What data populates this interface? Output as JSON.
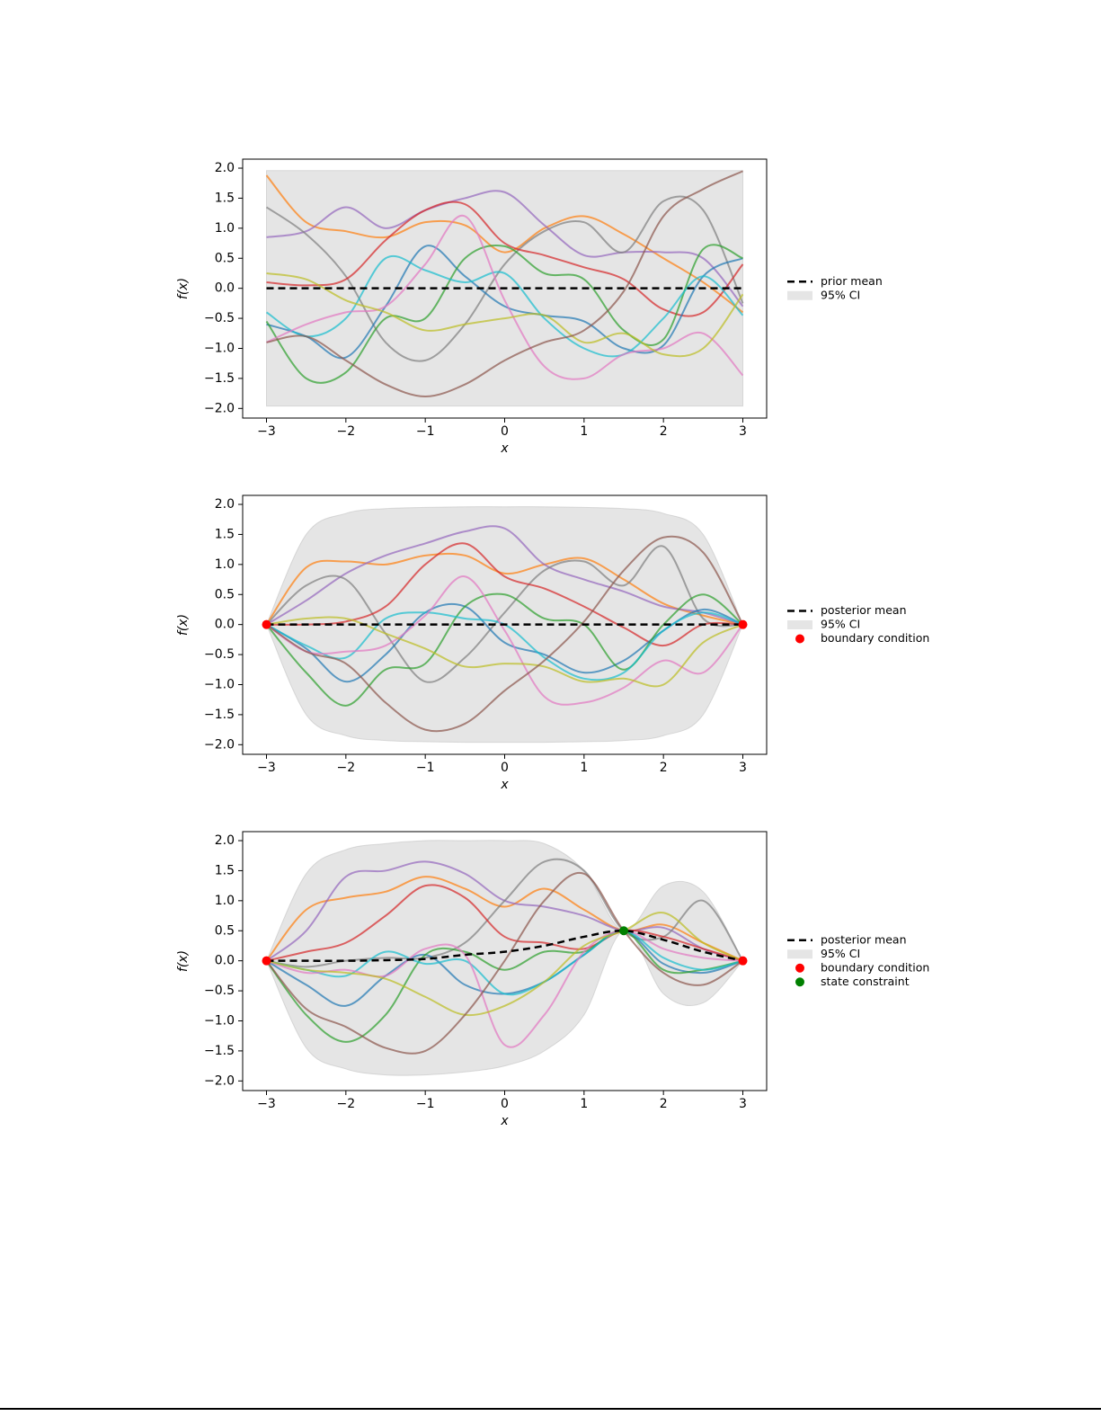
{
  "chart_data": [
    {
      "type": "line",
      "xlabel": "x",
      "ylabel": "f(x)",
      "x": [
        -3,
        -2.5,
        -2,
        -1.5,
        -1,
        -0.5,
        0,
        0.5,
        1,
        1.5,
        2,
        2.5,
        3
      ],
      "samples": [
        {
          "color": "#ff7f0e",
          "values": [
            1.88,
            1.1,
            0.95,
            0.85,
            1.1,
            1.05,
            0.6,
            1.0,
            1.2,
            0.9,
            0.5,
            0.1,
            -0.4
          ]
        },
        {
          "color": "#9467bd",
          "values": [
            0.85,
            0.95,
            1.35,
            1.0,
            1.3,
            1.5,
            1.6,
            1.05,
            0.55,
            0.6,
            0.6,
            0.5,
            -0.3
          ]
        },
        {
          "color": "#7f7f7f",
          "values": [
            1.35,
            0.9,
            0.2,
            -0.9,
            -1.2,
            -0.6,
            0.4,
            0.95,
            1.1,
            0.6,
            1.45,
            1.3,
            -0.25
          ]
        },
        {
          "color": "#d62728",
          "values": [
            0.1,
            0.05,
            0.15,
            0.8,
            1.3,
            1.4,
            0.75,
            0.55,
            0.35,
            0.15,
            -0.35,
            -0.4,
            0.4
          ]
        },
        {
          "color": "#1f77b4",
          "values": [
            -0.6,
            -0.8,
            -1.15,
            -0.3,
            0.7,
            0.2,
            -0.3,
            -0.45,
            -0.55,
            -1.0,
            -0.95,
            0.2,
            0.5
          ]
        },
        {
          "color": "#2ca02c",
          "values": [
            -0.55,
            -1.5,
            -1.4,
            -0.5,
            -0.5,
            0.5,
            0.7,
            0.25,
            0.15,
            -0.7,
            -0.85,
            0.65,
            0.5
          ]
        },
        {
          "color": "#17becf",
          "values": [
            -0.4,
            -0.8,
            -0.5,
            0.5,
            0.3,
            0.1,
            0.25,
            -0.5,
            -1.0,
            -1.1,
            -0.5,
            0.2,
            -0.45
          ]
        },
        {
          "color": "#e377c2",
          "values": [
            -0.9,
            -0.6,
            -0.4,
            -0.3,
            0.4,
            1.2,
            -0.2,
            -1.3,
            -1.5,
            -1.1,
            -1.0,
            -0.75,
            -1.45
          ]
        },
        {
          "color": "#bcbd22",
          "values": [
            0.25,
            0.15,
            -0.2,
            -0.4,
            -0.7,
            -0.6,
            -0.5,
            -0.45,
            -0.9,
            -0.75,
            -1.1,
            -1.0,
            -0.1
          ]
        },
        {
          "color": "#8c564b",
          "values": [
            -0.9,
            -0.8,
            -1.2,
            -1.6,
            -1.8,
            -1.6,
            -1.2,
            -0.9,
            -0.7,
            -0.05,
            1.2,
            1.65,
            1.95
          ]
        }
      ],
      "mean": {
        "name": "prior mean",
        "color": "#000000",
        "values": [
          0,
          0,
          0,
          0,
          0,
          0,
          0,
          0,
          0,
          0,
          0,
          0,
          0
        ]
      },
      "band": {
        "name": "95% CI",
        "color": "#d3d3d3",
        "upper": [
          1.96,
          1.96,
          1.96,
          1.96,
          1.96,
          1.96,
          1.96,
          1.96,
          1.96,
          1.96,
          1.96,
          1.96,
          1.96
        ],
        "lower": [
          -1.96,
          -1.96,
          -1.96,
          -1.96,
          -1.96,
          -1.96,
          -1.96,
          -1.96,
          -1.96,
          -1.96,
          -1.96,
          -1.96,
          -1.96
        ]
      },
      "points": [],
      "xlim": [
        -3.3,
        3.3
      ],
      "ylim": [
        -2.16,
        2.15
      ],
      "xticks": [
        {
          "value": -3,
          "label": "−3"
        },
        {
          "value": -2,
          "label": "−2"
        },
        {
          "value": -1,
          "label": "−1"
        },
        0,
        1,
        2,
        3
      ],
      "yticks": [
        {
          "value": -2,
          "label": "−2.0"
        },
        {
          "value": -1.5,
          "label": "−1.5"
        },
        {
          "value": -1,
          "label": "−1.0"
        },
        {
          "value": -0.5,
          "label": "−0.5"
        },
        {
          "value": 0,
          "label": "0.0"
        },
        0.5,
        {
          "value": 1,
          "label": "1.0"
        },
        1.5,
        {
          "value": 2,
          "label": "2.0"
        }
      ]
    },
    {
      "type": "line",
      "xlabel": "x",
      "ylabel": "f(x)",
      "x": [
        -3,
        -2.5,
        -2,
        -1.5,
        -1,
        -0.5,
        0,
        0.5,
        1,
        1.5,
        2,
        2.5,
        3
      ],
      "samples": [
        {
          "color": "#ff7f0e",
          "values": [
            0,
            0.95,
            1.05,
            1.0,
            1.15,
            1.15,
            0.85,
            1.0,
            1.1,
            0.75,
            0.35,
            0.15,
            0
          ]
        },
        {
          "color": "#9467bd",
          "values": [
            0,
            0.4,
            0.85,
            1.15,
            1.35,
            1.55,
            1.6,
            1.0,
            0.75,
            0.55,
            0.3,
            0.2,
            0
          ]
        },
        {
          "color": "#7f7f7f",
          "values": [
            0,
            0.65,
            0.75,
            -0.15,
            -0.95,
            -0.55,
            0.2,
            0.9,
            1.05,
            0.65,
            1.3,
            0.1,
            0
          ]
        },
        {
          "color": "#d62728",
          "values": [
            0,
            0.0,
            0.05,
            0.3,
            1.0,
            1.35,
            0.8,
            0.6,
            0.3,
            -0.05,
            -0.35,
            0.0,
            0
          ]
        },
        {
          "color": "#1f77b4",
          "values": [
            0,
            -0.4,
            -0.95,
            -0.5,
            0.2,
            0.3,
            -0.3,
            -0.5,
            -0.8,
            -0.6,
            -0.1,
            0.25,
            0
          ]
        },
        {
          "color": "#2ca02c",
          "values": [
            0,
            -0.8,
            -1.35,
            -0.75,
            -0.65,
            0.3,
            0.5,
            0.1,
            0.0,
            -0.75,
            0.0,
            0.5,
            0
          ]
        },
        {
          "color": "#17becf",
          "values": [
            0,
            -0.35,
            -0.55,
            0.1,
            0.2,
            0.1,
            0.0,
            -0.55,
            -0.9,
            -0.8,
            -0.1,
            0.2,
            0
          ]
        },
        {
          "color": "#e377c2",
          "values": [
            0,
            -0.45,
            -0.45,
            -0.35,
            0.15,
            0.8,
            -0.1,
            -1.2,
            -1.3,
            -1.05,
            -0.6,
            -0.8,
            0
          ]
        },
        {
          "color": "#bcbd22",
          "values": [
            0,
            0.1,
            0.1,
            -0.15,
            -0.4,
            -0.7,
            -0.65,
            -0.7,
            -0.95,
            -0.9,
            -1.0,
            -0.3,
            0
          ]
        },
        {
          "color": "#8c564b",
          "values": [
            0,
            -0.45,
            -0.65,
            -1.3,
            -1.75,
            -1.65,
            -1.1,
            -0.6,
            0.05,
            0.9,
            1.45,
            1.2,
            0
          ]
        }
      ],
      "mean": {
        "name": "posterior mean",
        "color": "#000000",
        "values": [
          0,
          0,
          0,
          0,
          0,
          0,
          0,
          0,
          0,
          0,
          0,
          0,
          0
        ]
      },
      "band": {
        "name": "95% CI",
        "color": "#d3d3d3",
        "upper": [
          0,
          1.5,
          1.85,
          1.93,
          1.95,
          1.96,
          1.96,
          1.96,
          1.95,
          1.93,
          1.85,
          1.5,
          0
        ],
        "lower": [
          0,
          -1.5,
          -1.85,
          -1.93,
          -1.95,
          -1.96,
          -1.96,
          -1.96,
          -1.95,
          -1.93,
          -1.85,
          -1.5,
          0
        ]
      },
      "points": [
        {
          "name": "boundary condition",
          "color": "#ff0000",
          "x": [
            -3,
            3
          ],
          "y": [
            0,
            0
          ]
        }
      ],
      "xlim": [
        -3.3,
        3.3
      ],
      "ylim": [
        -2.16,
        2.15
      ],
      "xticks": [
        {
          "value": -3,
          "label": "−3"
        },
        {
          "value": -2,
          "label": "−2"
        },
        {
          "value": -1,
          "label": "−1"
        },
        0,
        1,
        2,
        3
      ],
      "yticks": [
        {
          "value": -2,
          "label": "−2.0"
        },
        {
          "value": -1.5,
          "label": "−1.5"
        },
        {
          "value": -1,
          "label": "−1.0"
        },
        {
          "value": -0.5,
          "label": "−0.5"
        },
        {
          "value": 0,
          "label": "0.0"
        },
        0.5,
        {
          "value": 1,
          "label": "1.0"
        },
        1.5,
        {
          "value": 2,
          "label": "2.0"
        }
      ]
    },
    {
      "type": "line",
      "xlabel": "x",
      "ylabel": "f(x)",
      "x": [
        -3,
        -2.5,
        -2,
        -1.5,
        -1,
        -0.5,
        0,
        0.5,
        1,
        1.5,
        2,
        2.5,
        3
      ],
      "samples": [
        {
          "color": "#ff7f0e",
          "values": [
            0,
            0.85,
            1.05,
            1.15,
            1.4,
            1.2,
            0.9,
            1.2,
            0.85,
            0.5,
            0.6,
            0.3,
            0
          ]
        },
        {
          "color": "#9467bd",
          "values": [
            0,
            0.5,
            1.4,
            1.5,
            1.65,
            1.45,
            1.0,
            0.9,
            0.75,
            0.5,
            0.55,
            0.2,
            0
          ]
        },
        {
          "color": "#7f7f7f",
          "values": [
            0,
            -0.1,
            0.0,
            0.05,
            0.05,
            0.3,
            1.0,
            1.65,
            1.5,
            0.5,
            0.4,
            1.0,
            0
          ]
        },
        {
          "color": "#d62728",
          "values": [
            0,
            0.15,
            0.3,
            0.75,
            1.25,
            1.05,
            0.4,
            0.3,
            0.2,
            0.5,
            0.4,
            0.2,
            0
          ]
        },
        {
          "color": "#1f77b4",
          "values": [
            0,
            -0.4,
            -0.75,
            -0.25,
            0.1,
            -0.4,
            -0.55,
            -0.35,
            0.1,
            0.5,
            -0.05,
            -0.2,
            0
          ]
        },
        {
          "color": "#2ca02c",
          "values": [
            0,
            -0.9,
            -1.35,
            -0.9,
            0.1,
            0.15,
            -0.15,
            0.15,
            0.15,
            0.5,
            -0.15,
            -0.15,
            0
          ]
        },
        {
          "color": "#17becf",
          "values": [
            0,
            -0.15,
            -0.25,
            0.15,
            -0.05,
            0.0,
            -0.55,
            -0.35,
            0.1,
            0.5,
            0.05,
            -0.15,
            0
          ]
        },
        {
          "color": "#e377c2",
          "values": [
            0,
            -0.2,
            -0.15,
            -0.25,
            0.2,
            0.1,
            -1.4,
            -0.9,
            0.15,
            0.5,
            0.2,
            0.05,
            0
          ]
        },
        {
          "color": "#bcbd22",
          "values": [
            0,
            -0.15,
            -0.2,
            -0.3,
            -0.6,
            -0.9,
            -0.75,
            -0.35,
            0.25,
            0.5,
            0.8,
            0.3,
            0
          ]
        },
        {
          "color": "#8c564b",
          "values": [
            0,
            -0.8,
            -1.1,
            -1.45,
            -1.5,
            -0.9,
            0.0,
            1.0,
            1.45,
            0.5,
            -0.2,
            -0.4,
            0
          ]
        }
      ],
      "mean": {
        "name": "posterior mean",
        "color": "#000000",
        "values": [
          0,
          0,
          0,
          0.01,
          0.03,
          0.1,
          0.15,
          0.25,
          0.4,
          0.5,
          0.35,
          0.15,
          0
        ]
      },
      "band": {
        "name": "95% CI",
        "color": "#d3d3d3",
        "upper": [
          0,
          1.45,
          1.85,
          1.95,
          2.0,
          2.0,
          2.0,
          1.95,
          1.5,
          0.5,
          1.25,
          1.15,
          0
        ],
        "lower": [
          0,
          -1.45,
          -1.8,
          -1.9,
          -1.9,
          -1.85,
          -1.75,
          -1.5,
          -0.9,
          0.5,
          -0.55,
          -0.7,
          0
        ]
      },
      "points": [
        {
          "name": "boundary condition",
          "color": "#ff0000",
          "x": [
            -3,
            3
          ],
          "y": [
            0,
            0
          ]
        },
        {
          "name": "state constraint",
          "color": "#008000",
          "x": [
            1.5
          ],
          "y": [
            0.5
          ]
        }
      ],
      "xlim": [
        -3.3,
        3.3
      ],
      "ylim": [
        -2.16,
        2.15
      ],
      "xticks": [
        {
          "value": -3,
          "label": "−3"
        },
        {
          "value": -2,
          "label": "−2"
        },
        {
          "value": -1,
          "label": "−1"
        },
        0,
        1,
        2,
        3
      ],
      "yticks": [
        {
          "value": -2,
          "label": "−2.0"
        },
        {
          "value": -1.5,
          "label": "−1.5"
        },
        {
          "value": -1,
          "label": "−1.0"
        },
        {
          "value": -0.5,
          "label": "−0.5"
        },
        {
          "value": 0,
          "label": "0.0"
        },
        0.5,
        {
          "value": 1,
          "label": "1.0"
        },
        1.5,
        {
          "value": 2,
          "label": "2.0"
        }
      ]
    }
  ]
}
